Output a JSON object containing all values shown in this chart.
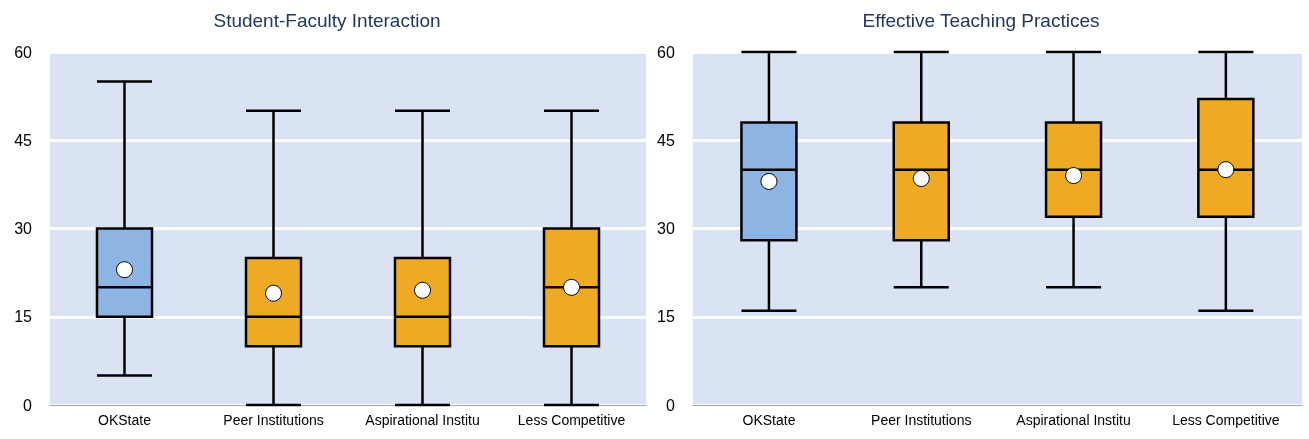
{
  "chart_data": [
    {
      "type": "box",
      "title": "Student-Faculty Interaction",
      "categories": [
        "OKState",
        "Peer Institutions",
        "Aspirational Institu",
        "Less Competitive"
      ],
      "colors": [
        "#8eb4e3",
        "#eeaa24",
        "#eeaa24",
        "#eeaa24"
      ],
      "ylim": [
        0,
        60
      ],
      "yticks": [
        0,
        15,
        30,
        45,
        60
      ],
      "grid": "y",
      "boxes": [
        {
          "low": 5,
          "q1": 15,
          "median": 20,
          "q3": 30,
          "high": 55,
          "mean": 23
        },
        {
          "low": 0,
          "q1": 10,
          "median": 15,
          "q3": 25,
          "high": 50,
          "mean": 19
        },
        {
          "low": 0,
          "q1": 10,
          "median": 15,
          "q3": 25,
          "high": 50,
          "mean": 19.5
        },
        {
          "low": 0,
          "q1": 10,
          "median": 20,
          "q3": 30,
          "high": 50,
          "mean": 20
        }
      ]
    },
    {
      "type": "box",
      "title": "Effective Teaching Practices",
      "categories": [
        "OKState",
        "Peer Institutions",
        "Aspirational Institu",
        "Less Competitive"
      ],
      "colors": [
        "#8eb4e3",
        "#eeaa24",
        "#eeaa24",
        "#eeaa24"
      ],
      "ylim": [
        0,
        60
      ],
      "yticks": [
        0,
        15,
        30,
        45,
        60
      ],
      "grid": "y",
      "boxes": [
        {
          "low": 16,
          "q1": 28,
          "median": 40,
          "q3": 48,
          "high": 60,
          "mean": 38
        },
        {
          "low": 20,
          "q1": 28,
          "median": 40,
          "q3": 48,
          "high": 60,
          "mean": 38.5
        },
        {
          "low": 20,
          "q1": 32,
          "median": 40,
          "q3": 48,
          "high": 60,
          "mean": 39
        },
        {
          "low": 16,
          "q1": 32,
          "median": 40,
          "q3": 52,
          "high": 60,
          "mean": 40
        }
      ]
    }
  ]
}
